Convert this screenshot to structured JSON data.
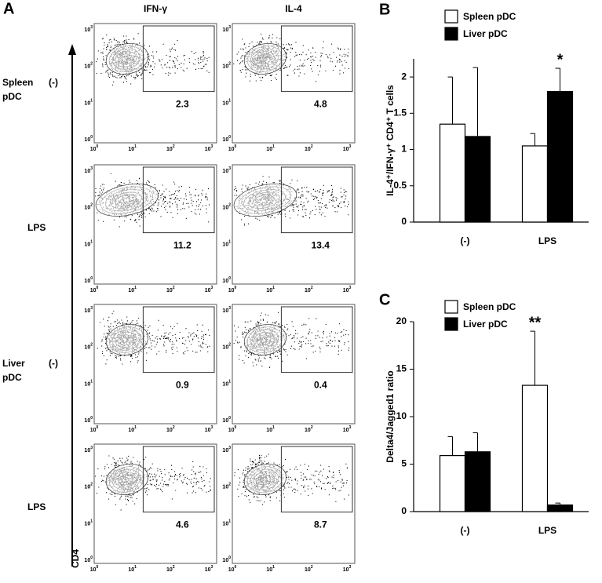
{
  "panel_a": {
    "label": "A",
    "columns": [
      "IFN-γ",
      "IL-4"
    ],
    "rows": [
      {
        "group": [
          "Spleen",
          "pDC"
        ],
        "condition": "(-)",
        "percentages": [
          2.3,
          4.8
        ]
      },
      {
        "condition": "LPS",
        "percentages": [
          11.2,
          13.4
        ]
      },
      {
        "group": [
          "Liver",
          "pDC"
        ],
        "condition": "(-)",
        "percentages": [
          0.9,
          0.4
        ]
      },
      {
        "condition": "LPS",
        "percentages": [
          4.6,
          8.7
        ]
      }
    ],
    "y_label": "CD4",
    "ticks": [
      {
        "base": "10",
        "exponent": 0
      },
      {
        "base": "10",
        "exponent": 1
      },
      {
        "base": "10",
        "exponent": 2
      },
      {
        "base": "10",
        "exponent": 3
      }
    ]
  },
  "chart_data": [
    {
      "type": "bar",
      "panel_label": "B",
      "y_label": "IL-4⁺/IFN-γ⁺ CD4⁺ T cells",
      "categories": [
        "(-)",
        "LPS"
      ],
      "series": [
        {
          "name": "Spleen pDC",
          "color": "#ffffff",
          "values": [
            1.35,
            1.05
          ],
          "errors": [
            0.65,
            0.17
          ]
        },
        {
          "name": "Liver pDC",
          "color": "#000000",
          "values": [
            1.18,
            1.8
          ],
          "errors": [
            0.95,
            0.32
          ]
        }
      ],
      "ylim": [
        0,
        2.25
      ],
      "yticks": [
        0,
        0.5,
        1,
        1.5,
        2
      ],
      "significance": "*"
    },
    {
      "type": "bar",
      "panel_label": "C",
      "y_label": "Delta4/Jagged1 ratio",
      "categories": [
        "(-)",
        "LPS"
      ],
      "series": [
        {
          "name": "Spleen pDC",
          "color": "#ffffff",
          "values": [
            5.9,
            13.3
          ],
          "errors": [
            2.0,
            5.7
          ]
        },
        {
          "name": "Liver pDC",
          "color": "#000000",
          "values": [
            6.3,
            0.7
          ],
          "errors": [
            2.0,
            0.2
          ]
        }
      ],
      "ylim": [
        0,
        20
      ],
      "yticks": [
        0,
        5,
        10,
        15,
        20
      ],
      "significance": "**"
    }
  ]
}
